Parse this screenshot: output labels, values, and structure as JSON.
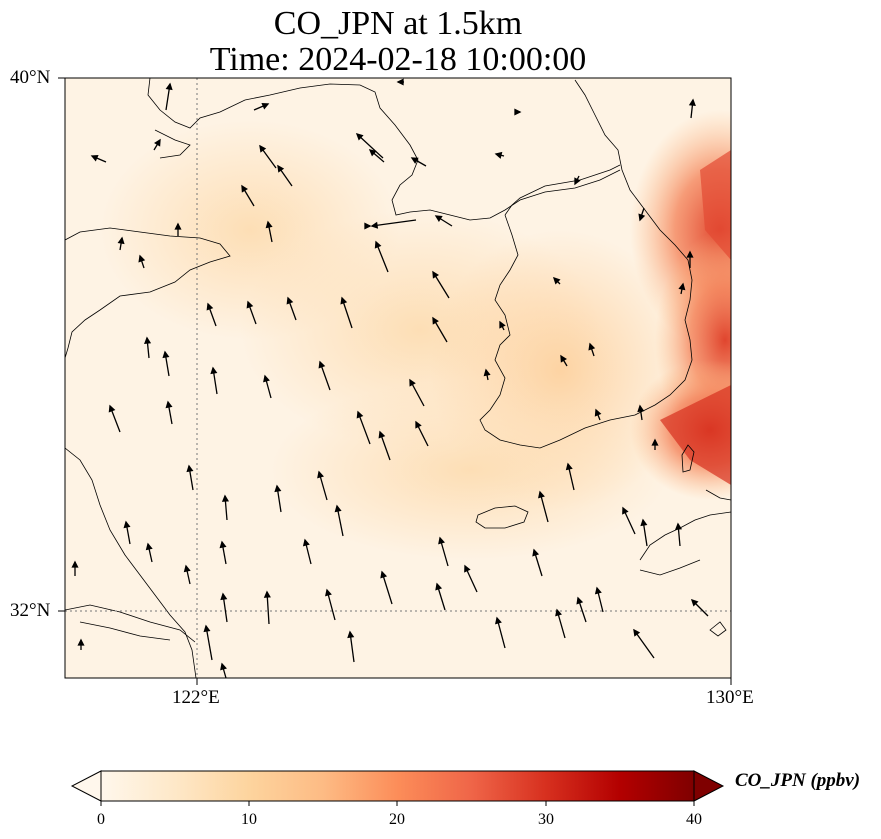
{
  "title": {
    "line1": "CO_JPN at 1.5km",
    "line2": "Time: 2024-02-18 10:00:00"
  },
  "axes": {
    "lat_labels": [
      "40°N",
      "32°N"
    ],
    "lon_labels": [
      "122°E",
      "130°E"
    ],
    "lat_range": [
      31,
      40
    ],
    "lon_range": [
      120,
      130
    ],
    "gridlines": {
      "lat": 32,
      "lon": 122,
      "style": "dotted"
    }
  },
  "colorbar": {
    "label": "CO_JPN (ppbv)",
    "ticks": [
      "0",
      "10",
      "20",
      "30",
      "40"
    ],
    "range": [
      0,
      40
    ],
    "extend": "both",
    "colormap": "OrRd",
    "colors": [
      "#fff7ec",
      "#fee8c8",
      "#fdd49e",
      "#fdbb84",
      "#fc8d59",
      "#ef6548",
      "#d7301f",
      "#b30000",
      "#7f0000"
    ]
  },
  "field": {
    "variable": "CO_JPN",
    "level": "1.5km",
    "description_values": [
      {
        "region": "background",
        "value": 2
      },
      {
        "region": "central plume",
        "value": 7
      },
      {
        "region": "korea east coast",
        "value": 22
      },
      {
        "region": "south-east corner",
        "value": 30
      }
    ]
  },
  "wind_vectors": {
    "shown": true,
    "color": "#000000"
  }
}
